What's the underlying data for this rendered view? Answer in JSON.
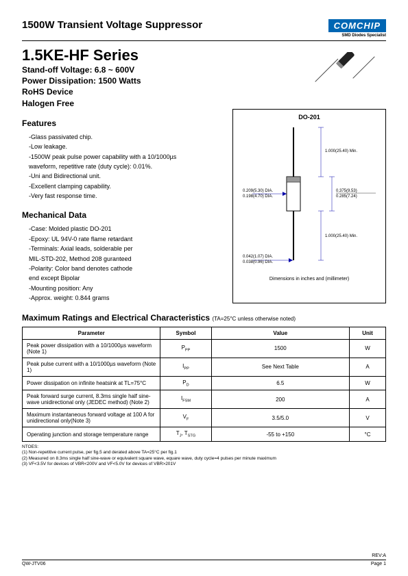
{
  "header": {
    "doc_type": "1500W Transient Voltage Suppressor",
    "logo_text": "COMCHIP",
    "logo_sub": "SMD Diodes Specialist",
    "series": "1.5KE-HF Series",
    "spec_lines": [
      "Stand-off Voltage: 6.8 ~ 600V",
      "Power Dissipation: 1500 Watts",
      "RoHS Device",
      "Halogen Free"
    ]
  },
  "features": {
    "title": "Features",
    "items": [
      "-Glass passivated chip.",
      "-Low leakage.",
      "-1500W peak pulse power capability with a 10/1000µs",
      "  waveform, repetitive rate (duty cycle): 0.01%.",
      "-Uni and Bidirectional unit.",
      "-Excellent clamping capability.",
      "-Very fast response time."
    ]
  },
  "mechanical": {
    "title": "Mechanical Data",
    "items": [
      "-Case: Molded plastic DO-201",
      "-Epoxy: UL 94V-0 rate flame retardant",
      "-Terminals: Axial leads, solderable per",
      "  MIL-STD-202, Method 208 guranteed",
      "-Polarity: Color band denotes cathode",
      "  end except Bipolar",
      "-Mounting position: Any",
      "-Approx. weight: 0.844 grams"
    ]
  },
  "package": {
    "title": "DO-201",
    "caption": "Dimensions in inches and (millimeter)",
    "labels": {
      "lead_len_top": "1.000(25.40) Min.",
      "body_len": "0.375(9.53)",
      "band": "0.285(7.24)",
      "body_dia1": "0.209(5.30) DIA.",
      "body_dia2": "0.198(4.70) DIA.",
      "lead_len_bot": "1.000(25.40) Min.",
      "lead_dia1": "0.042(1.07) DIA.",
      "lead_dia2": "0.038(0.96) DIA."
    }
  },
  "ratings": {
    "title": "Maximum Ratings and Electrical Characteristics",
    "subtitle": "(TA=25°C unless otherwise noted)",
    "columns": [
      "Parameter",
      "Symbol",
      "Value",
      "Unit"
    ],
    "rows": [
      {
        "param": "Peak power dissipation with a 10/1000µs waveform (Note 1)",
        "symbol": "P<sub>PP</sub>",
        "value": "1500",
        "unit": "W"
      },
      {
        "param": "Peak pulse current  with a 10/1000µs waveform (Note 1)",
        "symbol": "I<sub>PP</sub>",
        "value": "See Next Table",
        "unit": "A"
      },
      {
        "param": "Power dissipation on infinite heatsink at TL=75°C",
        "symbol": "P<sub>D</sub>",
        "value": "6.5",
        "unit": "W"
      },
      {
        "param": "Peak forward surge current, 8.3ms single half sine-wave unidirectional only (JEDEC method) (Note 2)",
        "symbol": "I<sub>FSM</sub>",
        "value": "200",
        "unit": "A"
      },
      {
        "param": "Maximum instantaneous forward voltage at 100 A for unidirectional only(Note 3)",
        "symbol": "V<sub>F</sub>",
        "value": "3.5/5.0",
        "unit": "V"
      },
      {
        "param": "Operating junction and storage temperature range",
        "symbol": "T<sub>J</sub>, T<sub>STG</sub>",
        "value": "-55 to +150",
        "unit": "°C"
      }
    ]
  },
  "notes": {
    "heading": "NTOES:",
    "lines": [
      "(1) Non-repetitive current pulse, per fig.5 and derated above TA=25°C per fig.1",
      "(2) Measured on 8.3ms single half sine-wave or equivalent square wave, equare wave, duty cycle=4 pulses per minute maximum",
      "(3) VF<3.5V for devices of VBR<200V and VF<5.0V for devices of VBR>201V"
    ]
  },
  "footer": {
    "rev": "REV:A",
    "docnum": "QW-JTV06",
    "page": "Page 1"
  },
  "colors": {
    "logo_bg": "#0066b3",
    "text": "#000000"
  }
}
